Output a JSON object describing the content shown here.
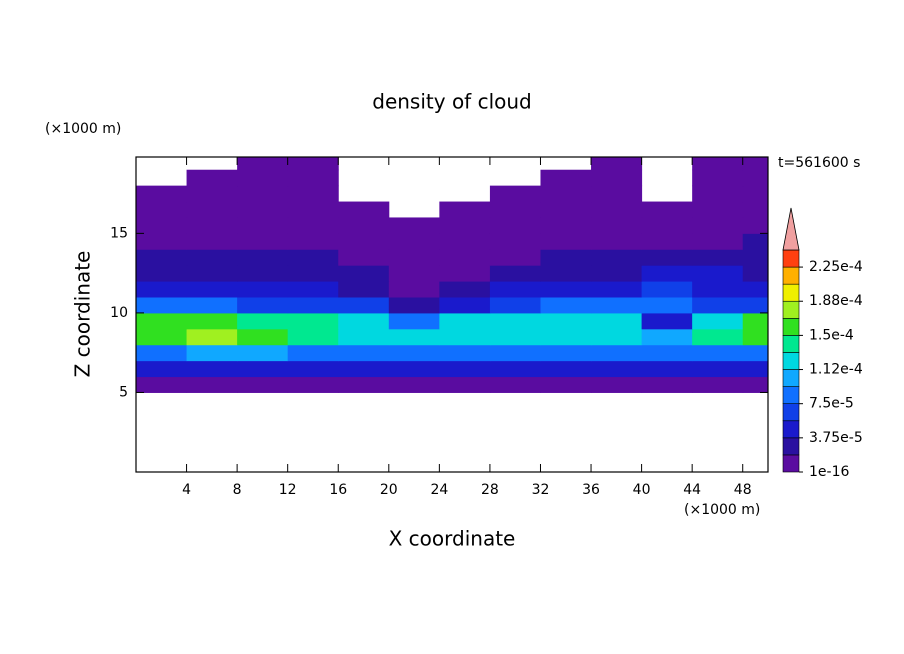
{
  "chart_data": {
    "type": "contour",
    "title": "density of cloud",
    "subtitle": "t=561600 s",
    "x_label": "X coordinate",
    "y_label": "Z coordinate",
    "x_unit": "(×1000 m)",
    "y_unit": "(×1000 m)",
    "xlim": [
      0,
      50
    ],
    "ylim": [
      0,
      19.8
    ],
    "xticks": [
      4,
      8,
      12,
      16,
      20,
      24,
      28,
      32,
      36,
      40,
      44,
      48
    ],
    "yticks": [
      5,
      10,
      15
    ],
    "x": [
      2,
      6,
      10,
      14,
      18,
      22,
      26,
      30,
      34,
      38,
      42,
      46,
      50
    ],
    "y": [
      5.5,
      6.5,
      7.5,
      8.5,
      9.5,
      10.5,
      11.5,
      12.5,
      13.5,
      14.5,
      15.5,
      16.5,
      17.5,
      18.5,
      19.5
    ],
    "z": [
      [
        1e-05,
        1e-05,
        1e-05,
        1e-05,
        1e-05,
        1e-05,
        1e-05,
        1e-05,
        1e-05,
        1e-05,
        1e-05,
        1e-05,
        1e-05
      ],
      [
        4e-05,
        4e-05,
        4e-05,
        4e-05,
        4e-05,
        4e-05,
        4e-05,
        4e-05,
        4e-05,
        4e-05,
        4e-05,
        4e-05,
        4e-05
      ],
      [
        9e-05,
        0.0001,
        0.0001,
        9e-05,
        9e-05,
        8e-05,
        9e-05,
        9e-05,
        9e-05,
        9e-05,
        8e-05,
        9e-05,
        9e-05
      ],
      [
        0.00016,
        0.00017,
        0.00015,
        0.00014,
        0.00013,
        0.00012,
        0.00013,
        0.00013,
        0.00013,
        0.00013,
        0.00011,
        0.00014,
        0.00015
      ],
      [
        0.00015,
        0.00016,
        0.00014,
        0.00014,
        0.00013,
        9e-05,
        0.00012,
        0.00013,
        0.00013,
        0.00013,
        5e-05,
        0.00012,
        0.00016
      ],
      [
        8e-05,
        9e-05,
        7e-05,
        7e-05,
        6e-05,
        3e-05,
        5e-05,
        7e-05,
        8e-05,
        9e-05,
        8e-05,
        7e-05,
        6e-05
      ],
      [
        4e-05,
        4e-05,
        4e-05,
        4e-05,
        3e-05,
        1.5e-05,
        2e-05,
        4e-05,
        5e-05,
        5e-05,
        6e-05,
        5e-05,
        4e-05
      ],
      [
        3e-05,
        3e-05,
        2.5e-05,
        2.5e-05,
        2e-05,
        1e-05,
        1e-05,
        2e-05,
        3e-05,
        3e-05,
        4e-05,
        4e-05,
        3e-05
      ],
      [
        2e-05,
        2e-05,
        2e-05,
        2e-05,
        1.5e-05,
        5e-06,
        8e-06,
        1.5e-05,
        2e-05,
        2e-05,
        2e-05,
        3e-05,
        3e-05
      ],
      [
        1.5e-05,
        1.5e-05,
        1e-05,
        1e-05,
        1e-05,
        3e-06,
        5e-06,
        1e-05,
        1.5e-05,
        1e-05,
        1e-05,
        1.5e-05,
        2e-05
      ],
      [
        5e-06,
        5e-06,
        5e-06,
        5e-06,
        5e-06,
        5e-06,
        5e-06,
        5e-06,
        5e-06,
        5e-06,
        5e-06,
        5e-06,
        5e-06
      ],
      [
        3e-06,
        3e-06,
        3e-06,
        3e-06,
        3e-06,
        null,
        3e-06,
        3e-06,
        3e-06,
        3e-06,
        3e-06,
        3e-06,
        3e-06
      ],
      [
        3e-06,
        2e-06,
        2e-06,
        2e-06,
        null,
        null,
        null,
        2e-06,
        2e-06,
        2e-06,
        null,
        2e-06,
        2e-06
      ],
      [
        null,
        2e-06,
        2e-06,
        2e-06,
        null,
        null,
        null,
        null,
        2e-06,
        2e-06,
        null,
        2e-06,
        2e-06
      ],
      [
        null,
        null,
        2e-06,
        2e-06,
        null,
        null,
        null,
        null,
        null,
        2e-06,
        null,
        2e-06,
        2e-06
      ]
    ],
    "levels": [
      1e-16,
      1.875e-05,
      3.75e-05,
      5.625e-05,
      7.5e-05,
      9.375e-05,
      0.0001125,
      0.00013125,
      0.00015,
      0.00016875,
      0.0001875,
      0.00020625,
      0.000225,
      0.00024375
    ],
    "colors": [
      "#5a0ca0",
      "#2a10a0",
      "#1a1acc",
      "#1040e8",
      "#1070ff",
      "#10a8ff",
      "#00d8e0",
      "#00e890",
      "#30e020",
      "#a0f020",
      "#f0f000",
      "#ffb000",
      "#ff4010",
      "#f0a0a0"
    ],
    "cticks": [
      {
        "value": 1e-16,
        "label": "1e-16"
      },
      {
        "value": 3.75e-05,
        "label": "3.75e-5"
      },
      {
        "value": 7.5e-05,
        "label": "7.5e-5"
      },
      {
        "value": 0.0001125,
        "label": "1.12e-4"
      },
      {
        "value": 0.00015,
        "label": "1.5e-4"
      },
      {
        "value": 0.0001875,
        "label": "1.88e-4"
      },
      {
        "value": 0.000225,
        "label": "2.25e-4"
      }
    ]
  }
}
